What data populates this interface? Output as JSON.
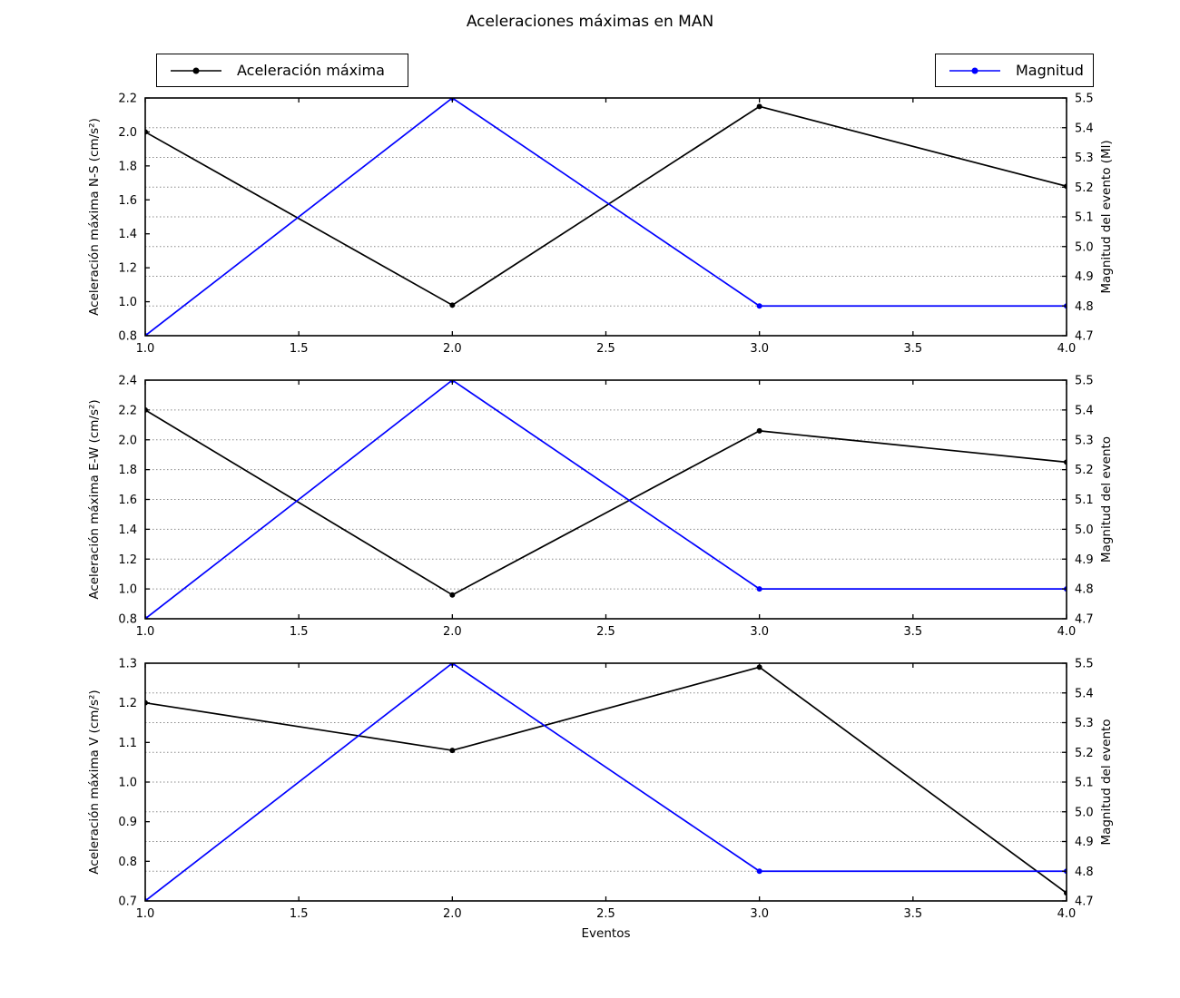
{
  "title": "Aceleraciones máximas en MAN",
  "xlabel": "Eventos",
  "legend": {
    "accel": {
      "label": "Aceleración máxima",
      "color": "#000000"
    },
    "magnitude": {
      "label": "Magnitud",
      "color": "#0000ff"
    }
  },
  "grid_color": "#8a8a8a",
  "chart_data": [
    {
      "type": "line",
      "key": "ns",
      "ylabel_left": "Aceleración máxima N-S (cm/s²)",
      "ylabel_right": "Magnitud del evento (Ml)",
      "x": [
        1.0,
        2.0,
        3.0,
        4.0
      ],
      "xlim": [
        1.0,
        4.0
      ],
      "xticks": [
        1.0,
        1.5,
        2.0,
        2.5,
        3.0,
        3.5,
        4.0
      ],
      "ylim_left": [
        0.8,
        2.2
      ],
      "yticks_left": [
        0.8,
        1.0,
        1.2,
        1.4,
        1.6,
        1.8,
        2.0,
        2.2
      ],
      "ylim_right": [
        4.7,
        5.5
      ],
      "yticks_right": [
        4.7,
        4.8,
        4.9,
        5.0,
        5.1,
        5.2,
        5.3,
        5.4,
        5.5
      ],
      "grid": "horizontal dotted at right-axis ticks",
      "series": [
        {
          "name": "Aceleración máxima",
          "axis": "left",
          "color": "#000000",
          "values": [
            2.0,
            0.98,
            2.15,
            1.68
          ]
        },
        {
          "name": "Magnitud",
          "axis": "right",
          "color": "#0000ff",
          "values": [
            4.7,
            5.5,
            4.8,
            4.8
          ]
        }
      ]
    },
    {
      "type": "line",
      "key": "ew",
      "ylabel_left": "Aceleración máxima E-W (cm/s²)",
      "ylabel_right": "Magnitud del evento",
      "x": [
        1.0,
        2.0,
        3.0,
        4.0
      ],
      "xlim": [
        1.0,
        4.0
      ],
      "xticks": [
        1.0,
        1.5,
        2.0,
        2.5,
        3.0,
        3.5,
        4.0
      ],
      "ylim_left": [
        0.8,
        2.4
      ],
      "yticks_left": [
        0.8,
        1.0,
        1.2,
        1.4,
        1.6,
        1.8,
        2.0,
        2.2,
        2.4
      ],
      "ylim_right": [
        4.7,
        5.5
      ],
      "yticks_right": [
        4.7,
        4.8,
        4.9,
        5.0,
        5.1,
        5.2,
        5.3,
        5.4,
        5.5
      ],
      "grid": "horizontal dotted at right-axis ticks",
      "series": [
        {
          "name": "Aceleración máxima",
          "axis": "left",
          "color": "#000000",
          "values": [
            2.2,
            0.96,
            2.06,
            1.85
          ]
        },
        {
          "name": "Magnitud",
          "axis": "right",
          "color": "#0000ff",
          "values": [
            4.7,
            5.5,
            4.8,
            4.8
          ]
        }
      ]
    },
    {
      "type": "line",
      "key": "v",
      "ylabel_left": "Aceleración máxima V (cm/s²)",
      "ylabel_right": "Magnitud del evento",
      "xlabel": "Eventos",
      "x": [
        1.0,
        2.0,
        3.0,
        4.0
      ],
      "xlim": [
        1.0,
        4.0
      ],
      "xticks": [
        1.0,
        1.5,
        2.0,
        2.5,
        3.0,
        3.5,
        4.0
      ],
      "ylim_left": [
        0.7,
        1.3
      ],
      "yticks_left": [
        0.7,
        0.8,
        0.9,
        1.0,
        1.1,
        1.2,
        1.3
      ],
      "ylim_right": [
        4.7,
        5.5
      ],
      "yticks_right": [
        4.7,
        4.8,
        4.9,
        5.0,
        5.1,
        5.2,
        5.3,
        5.4,
        5.5
      ],
      "grid": "horizontal dotted at right-axis ticks",
      "series": [
        {
          "name": "Aceleración máxima",
          "axis": "left",
          "color": "#000000",
          "values": [
            1.2,
            1.08,
            1.29,
            0.72
          ]
        },
        {
          "name": "Magnitud",
          "axis": "right",
          "color": "#0000ff",
          "values": [
            4.7,
            5.5,
            4.8,
            4.8
          ]
        }
      ]
    }
  ]
}
